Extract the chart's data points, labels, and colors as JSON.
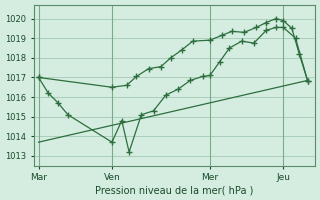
{
  "bg_color": "#d4ede0",
  "grid_color": "#aacfba",
  "line_color": "#2d6e3e",
  "xlabel": "Pression niveau de la mer( hPa )",
  "ylim": [
    1012.5,
    1020.7
  ],
  "yticks": [
    1013,
    1014,
    1015,
    1016,
    1017,
    1018,
    1019,
    1020
  ],
  "xtick_labels": [
    "Mar",
    "Ven",
    "Mer",
    "Jeu"
  ],
  "xtick_positions": [
    0,
    3,
    7,
    10
  ],
  "xlim": [
    -0.2,
    11.3
  ],
  "series_jagged_x": [
    0,
    0.4,
    0.8,
    1.2,
    3.0,
    3.4,
    3.7,
    4.2,
    4.7,
    5.2,
    5.7,
    6.2,
    6.7,
    7.0,
    7.4,
    7.8,
    8.3,
    8.8,
    9.3,
    9.7,
    10.0,
    10.5,
    11.0
  ],
  "series_jagged_y": [
    1017.0,
    1016.2,
    1015.7,
    1015.1,
    1013.7,
    1014.8,
    1013.2,
    1015.1,
    1015.3,
    1016.1,
    1016.4,
    1016.85,
    1017.05,
    1017.1,
    1017.8,
    1018.5,
    1018.85,
    1018.75,
    1019.4,
    1019.55,
    1019.55,
    1019.0,
    1016.8
  ],
  "series_smooth_x": [
    0,
    3.0,
    3.6,
    4.0,
    4.5,
    5.0,
    5.4,
    5.85,
    6.3,
    7.0,
    7.5,
    7.9,
    8.4,
    8.9,
    9.3,
    9.7,
    10.0,
    10.35,
    10.65,
    11.0
  ],
  "series_smooth_y": [
    1017.0,
    1016.5,
    1016.6,
    1017.05,
    1017.45,
    1017.55,
    1018.0,
    1018.4,
    1018.85,
    1018.9,
    1019.15,
    1019.35,
    1019.3,
    1019.55,
    1019.8,
    1020.0,
    1019.9,
    1019.5,
    1018.2,
    1016.8
  ],
  "series_trend_x": [
    0,
    11.0
  ],
  "series_trend_y": [
    1013.7,
    1016.85
  ],
  "vline_positions": [
    0,
    3,
    7,
    10
  ]
}
